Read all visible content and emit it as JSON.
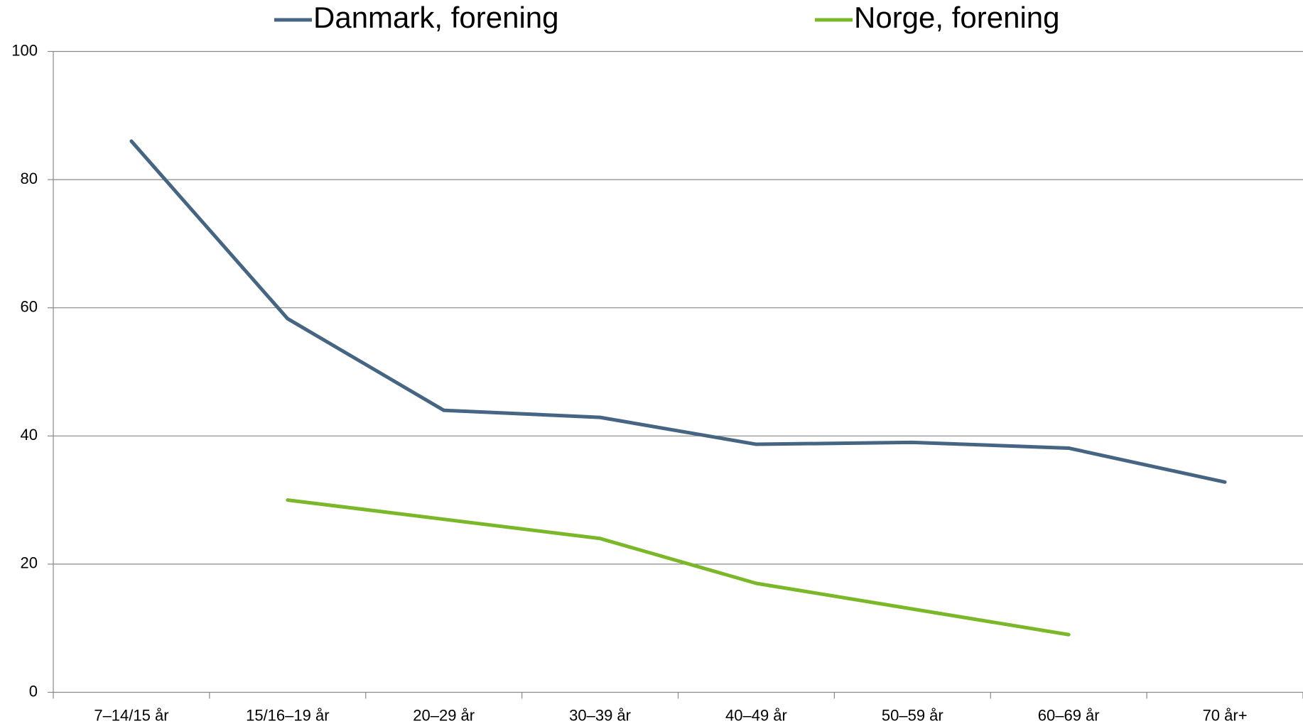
{
  "chart_data": {
    "type": "line",
    "categories": [
      "7–14/15 år",
      "15/16–19 år",
      "20–29 år",
      "30–39 år",
      "40–49 år",
      "50–59 år",
      "60–69 år",
      "70 år+"
    ],
    "series": [
      {
        "name": "Danmark, forening",
        "color": "#456583",
        "values": [
          86,
          58.3,
          44,
          42.9,
          38.7,
          39,
          38.1,
          32.8
        ]
      },
      {
        "name": "Norge, forening",
        "color": "#7ab829",
        "values": [
          null,
          30,
          27,
          24,
          17,
          13,
          9,
          null
        ]
      }
    ],
    "ylim": [
      0,
      100
    ],
    "yticks": [
      0,
      20,
      40,
      60,
      80,
      100
    ],
    "grid": true,
    "legend": "top"
  }
}
